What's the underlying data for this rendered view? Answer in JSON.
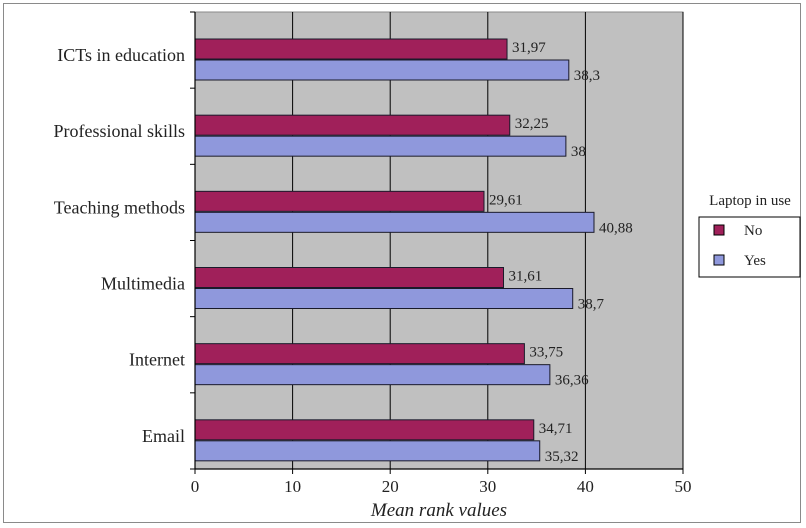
{
  "chart_data": {
    "type": "bar",
    "orientation": "horizontal",
    "categories": [
      "ICTs in education",
      "Professional skills",
      "Teaching methods",
      "Multimedia",
      "Internet",
      "Email"
    ],
    "series": [
      {
        "name": "No",
        "color": "#a0205a",
        "values": [
          31.97,
          32.25,
          29.61,
          31.61,
          33.75,
          34.71
        ],
        "labels": [
          "31,97",
          "32,25",
          "29,61",
          "31,61",
          "33,75",
          "34,71"
        ]
      },
      {
        "name": "Yes",
        "color": "#8f98dc",
        "values": [
          38.3,
          38,
          40.88,
          38.7,
          36.36,
          35.32
        ],
        "labels": [
          "38,3",
          "38",
          "40,88",
          "38,7",
          "36,36",
          "35,32"
        ]
      }
    ],
    "title": "",
    "xlabel": "Mean rank values",
    "ylabel": "",
    "xlim": [
      0,
      50
    ],
    "xticks": [
      0,
      10,
      20,
      30,
      40,
      50
    ],
    "grid": "vertical gridlines",
    "plot_background": "#c0c0c0",
    "legend": {
      "title": "Laptop in use",
      "position": "right"
    }
  }
}
